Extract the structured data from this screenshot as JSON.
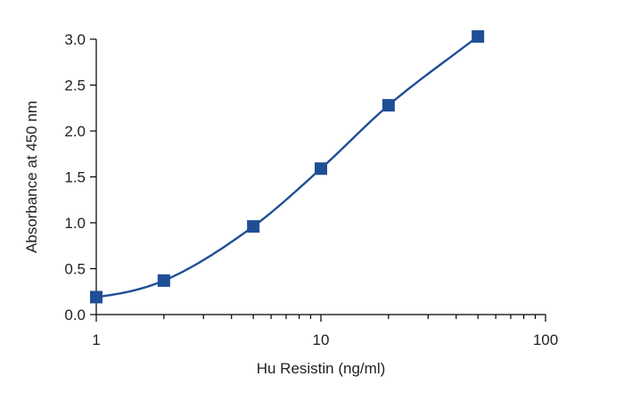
{
  "chart_data": {
    "type": "scatter",
    "title": "",
    "xlabel": "Hu Resistin (ng/ml)",
    "ylabel": "Absorbance at 450 nm",
    "xscale": "log",
    "xlim": [
      1,
      100
    ],
    "ylim": [
      0,
      3.0
    ],
    "grid": false,
    "legend": "none",
    "x_tick_labels": [
      "1",
      "10",
      "100"
    ],
    "y_tick_labels": [
      "0.0",
      "0.5",
      "1.0",
      "1.5",
      "2.0",
      "2.5",
      "3.0"
    ],
    "x": [
      1,
      2,
      5,
      10,
      20,
      50
    ],
    "y": [
      0.19,
      0.37,
      0.96,
      1.59,
      2.28,
      3.03
    ],
    "fit_curve": "smooth",
    "marker": "square",
    "color": "#1f4e96"
  }
}
